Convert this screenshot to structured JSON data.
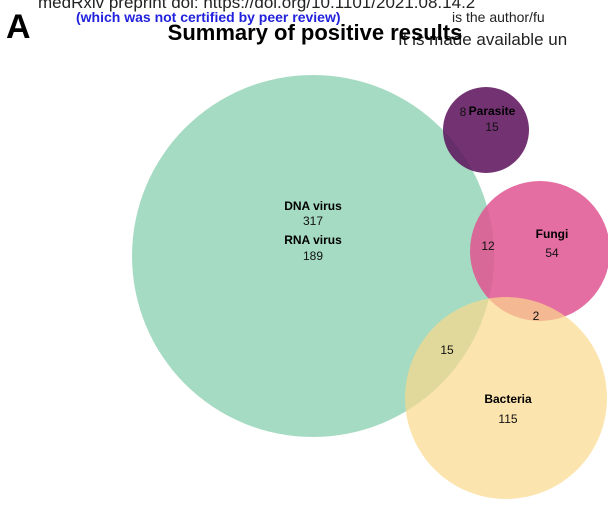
{
  "header": {
    "line1": "medRxiv preprint doi: https://doi.org/10.1101/2021.08.14.2",
    "line2_link": "(which was not certified by peer review)",
    "line2_rest": "is the author/fu",
    "line3": "It is made available un"
  },
  "panel": "A",
  "title": "Summary of positive results",
  "sets": [
    {
      "label": "DNA virus",
      "count": "317"
    },
    {
      "label": "RNA virus",
      "count": "189"
    },
    {
      "label": "Parasite",
      "count": "15"
    },
    {
      "label": "Fungi",
      "count": "54"
    },
    {
      "label": "Bacteria",
      "count": "115"
    }
  ],
  "overlaps": [
    {
      "sets": "Virus ∩ Parasite",
      "count": "8"
    },
    {
      "sets": "Virus ∩ Fungi",
      "count": "12"
    },
    {
      "sets": "Fungi ∩ Bacteria",
      "count": "2"
    },
    {
      "sets": "Virus ∩ Bacteria",
      "count": "15"
    }
  ]
}
